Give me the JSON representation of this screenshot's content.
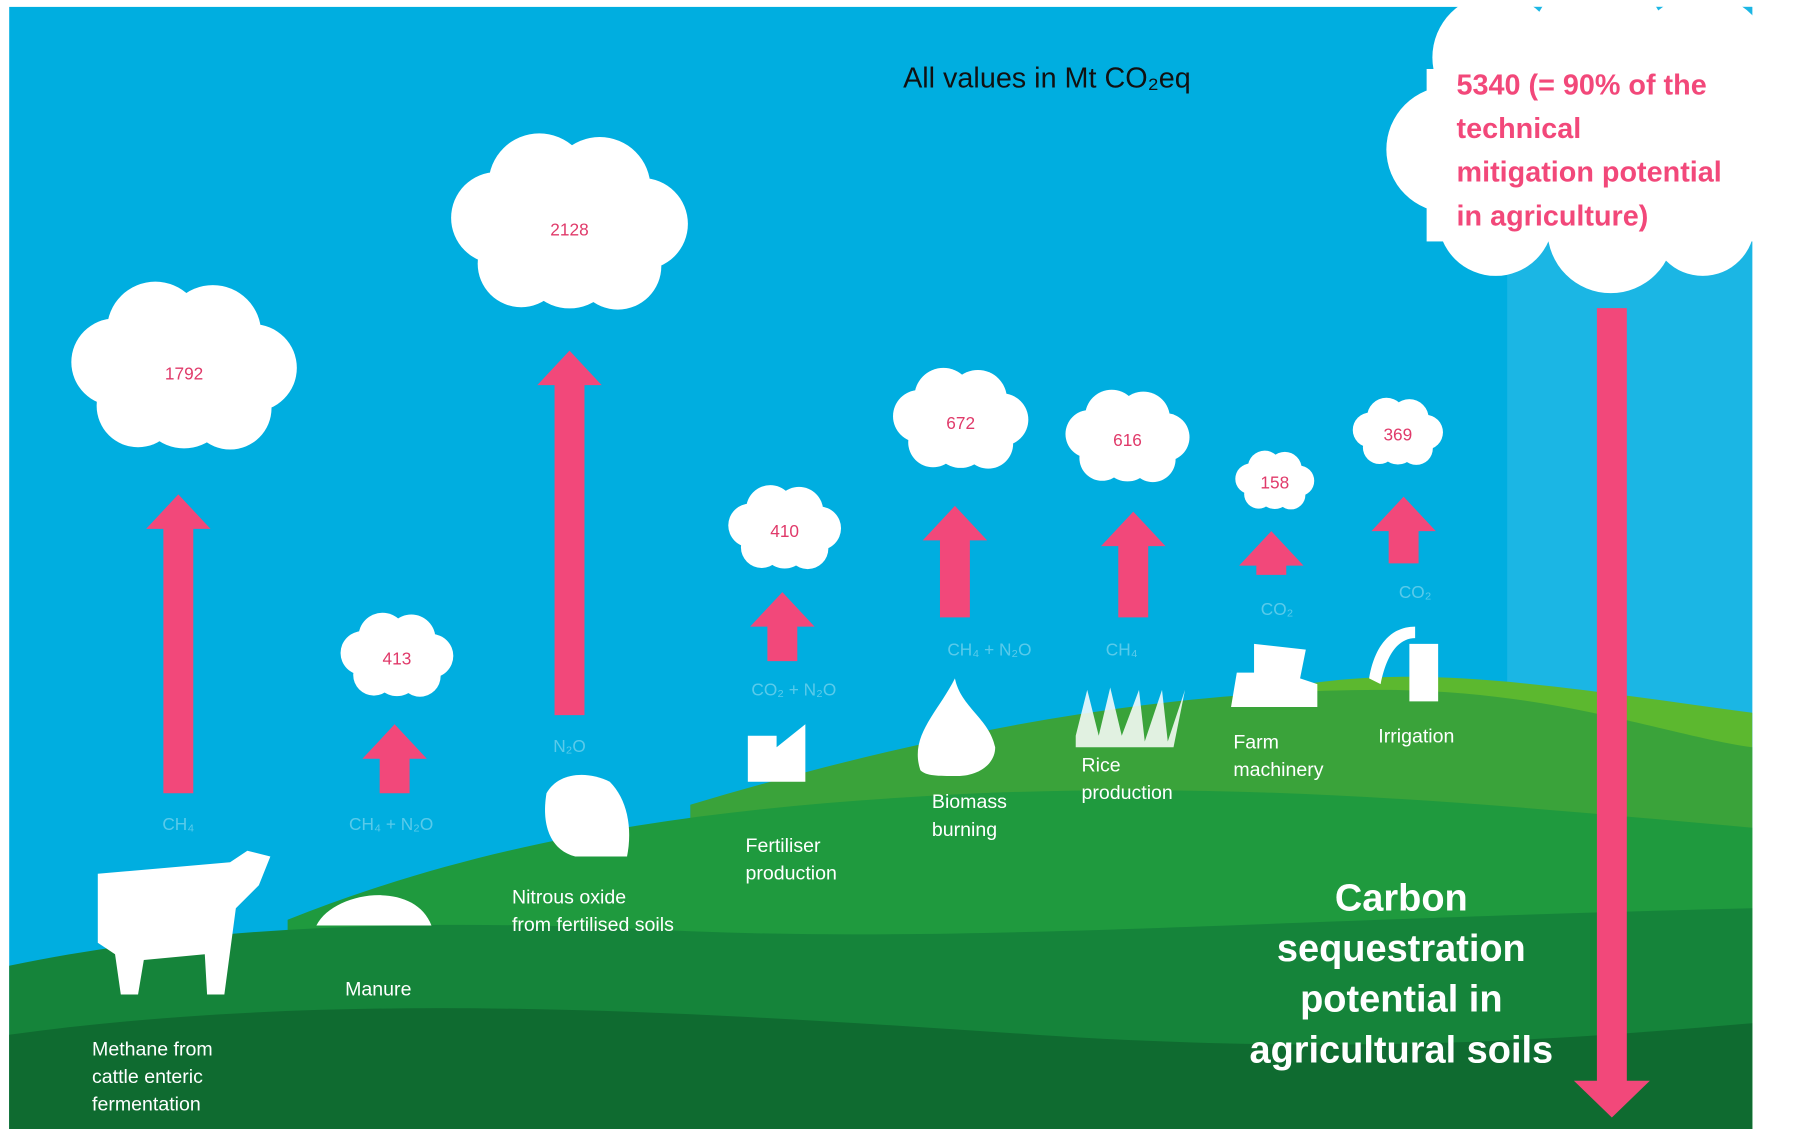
{
  "title": "All values in Mt CO₂eq",
  "nodes": [
    {
      "value": "1792",
      "gas": "CH₄",
      "label": [
        "Methane from",
        "cattle enteric",
        "fermentation"
      ]
    },
    {
      "value": "413",
      "gas": "CH₄ + N₂O",
      "label": [
        "Manure"
      ]
    },
    {
      "value": "2128",
      "gas": "N₂O",
      "label": [
        "Nitrous oxide",
        "from fertilised soils"
      ]
    },
    {
      "value": "410",
      "gas": "CO₂ + N₂O",
      "label": [
        "Fertiliser",
        "production"
      ]
    },
    {
      "value": "672",
      "gas": "CH₄ + N₂O",
      "label": [
        "Biomass",
        "burning"
      ]
    },
    {
      "value": "616",
      "gas": "CH₄",
      "label": [
        "Rice",
        "production"
      ]
    },
    {
      "value": "158",
      "gas": "CO₂",
      "label": [
        "Farm",
        "machinery"
      ]
    },
    {
      "value": "369",
      "gas": "CO₂",
      "label": [
        "Irrigation"
      ]
    }
  ],
  "callout": [
    "5340 (= 90% of the",
    "technical",
    "mitigation potential",
    "in agriculture)"
  ],
  "sequestration": [
    "Carbon",
    "sequestration",
    "potential in",
    "agricultural soils"
  ]
}
